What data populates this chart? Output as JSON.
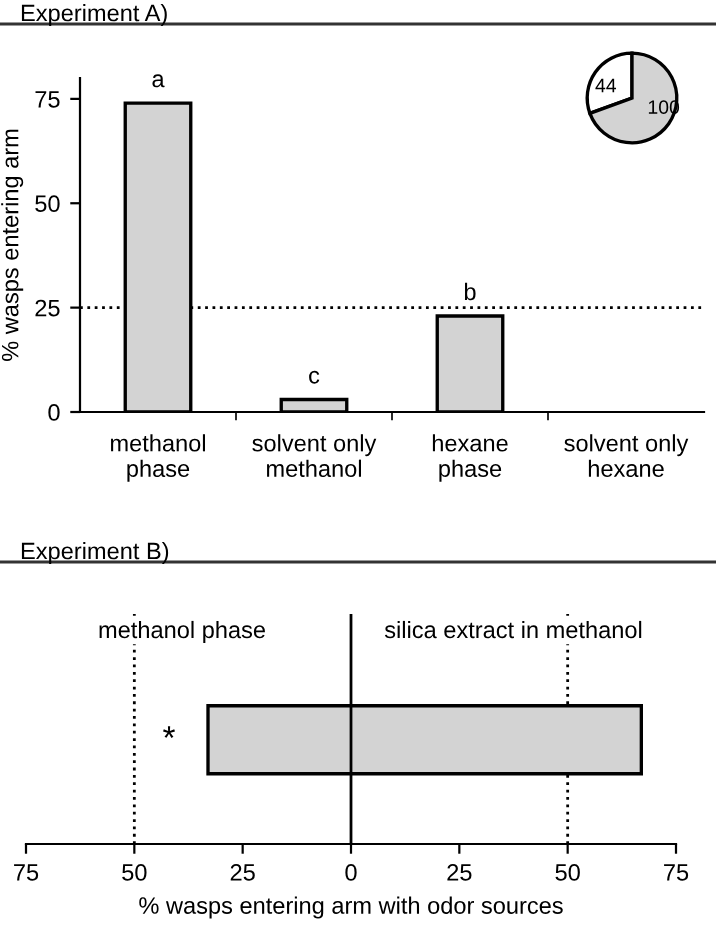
{
  "chart_data": [
    {
      "type": "bar",
      "title": "Experiment A)",
      "ylabel": "% wasps entering arm",
      "categories": [
        "methanol\nphase",
        "solvent only\nmethanol",
        "hexane\nphase",
        "solvent only\nhexane"
      ],
      "values": [
        74,
        3,
        23,
        null
      ],
      "color": "#d3d3d3",
      "value_labels": [
        "a",
        "c",
        "b",
        null
      ],
      "ylim": [
        0,
        80
      ],
      "yticks": [
        0,
        25,
        50,
        75
      ],
      "ref_lines": [
        {
          "axis": "y",
          "value": 25,
          "line_style": "dotted",
          "color": "#000000"
        }
      ]
    },
    {
      "type": "pie",
      "categories": [
        null,
        null
      ],
      "values": [
        44,
        100
      ],
      "colors": [
        "#ffffff",
        "#d3d3d3"
      ],
      "data_labels": true
    },
    {
      "type": "bar",
      "title": "Experiment B)",
      "orientation": "horizontal",
      "xlabel": "% wasps entering arm with odor sources",
      "categories": [
        null
      ],
      "base": [
        -33
      ],
      "values": [
        100
      ],
      "color": "#d3d3d3",
      "xlim": [
        -75,
        75
      ],
      "xticks": [
        {
          "value": -75,
          "label": "75"
        },
        {
          "value": -50,
          "label": "50"
        },
        {
          "value": -25,
          "label": "25"
        },
        0,
        25,
        50,
        75
      ],
      "tick_labels": "x",
      "ref_lines": [
        {
          "axis": "x",
          "value": 0,
          "line_style": "solid",
          "color": "#000000"
        },
        {
          "axis": "x",
          "value": -50,
          "line_style": "dotted",
          "color": "#000000"
        },
        {
          "axis": "x",
          "value": 50,
          "line_style": "dotted",
          "color": "#000000"
        }
      ],
      "annotations": [
        "methanol phase",
        "silica extract in methanol",
        "*"
      ]
    }
  ]
}
